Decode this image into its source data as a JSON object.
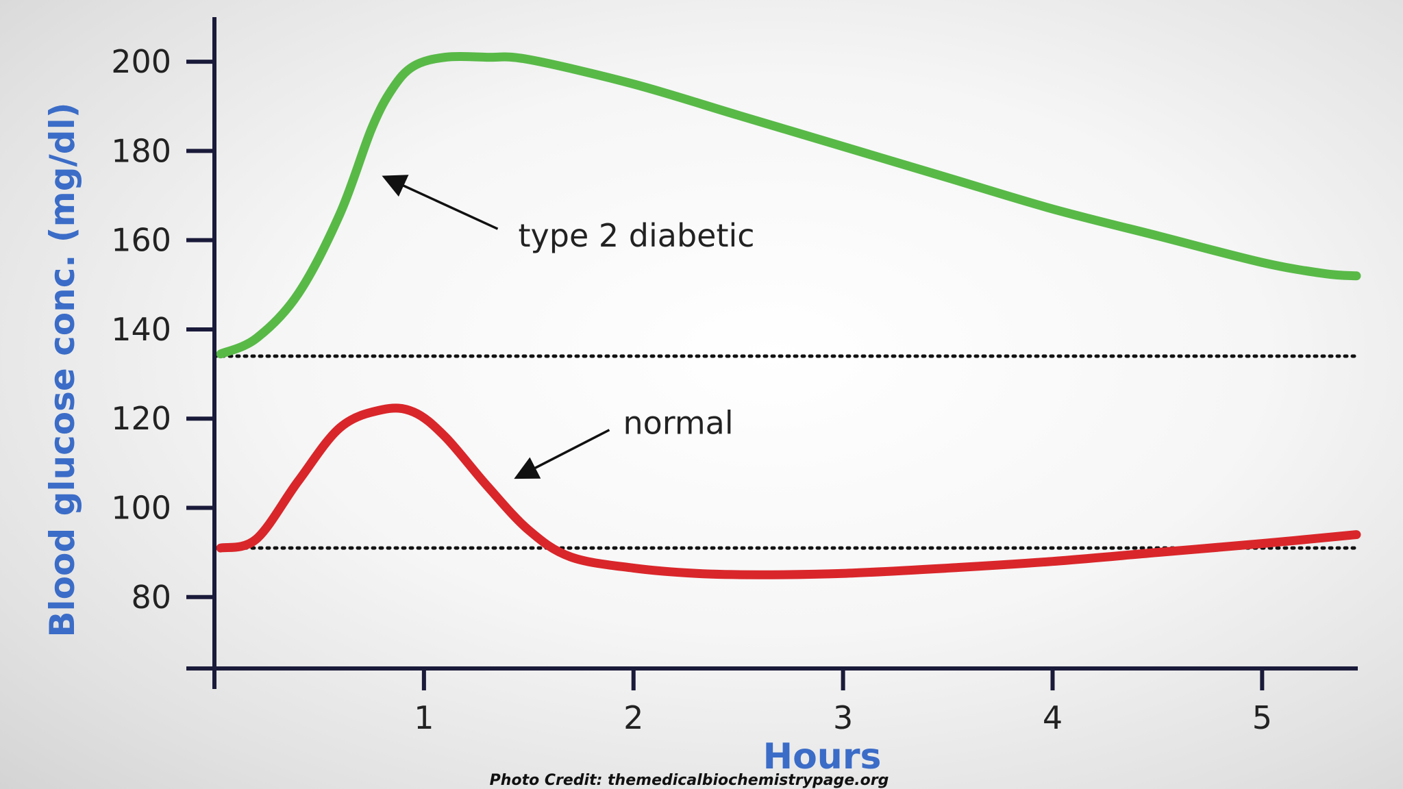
{
  "chart_data": {
    "type": "line",
    "xlabel": "Hours",
    "ylabel": "Blood glucose conc. (mg/dl)",
    "xlim": [
      0,
      5.45
    ],
    "ylim": [
      64,
      210
    ],
    "x_ticks": [
      1,
      2,
      3,
      4,
      5
    ],
    "y_ticks": [
      80,
      100,
      120,
      140,
      160,
      180,
      200
    ],
    "reference_lines": [
      {
        "y": 134,
        "style": "dotted"
      },
      {
        "y": 91,
        "style": "dotted"
      }
    ],
    "series": [
      {
        "name": "type 2 diabetic",
        "color": "#58b947",
        "x": [
          0.03,
          0.2,
          0.4,
          0.6,
          0.75,
          0.85,
          0.95,
          1.1,
          1.3,
          1.5,
          2.0,
          2.5,
          3.0,
          3.5,
          4.0,
          4.5,
          5.0,
          5.3,
          5.45
        ],
        "y": [
          134.5,
          138,
          148,
          166,
          185,
          194,
          199,
          201,
          201,
          200.5,
          195,
          188,
          181,
          174,
          167,
          161,
          155,
          152.5,
          152
        ]
      },
      {
        "name": "normal",
        "color": "#d9262a",
        "x": [
          0.03,
          0.2,
          0.4,
          0.6,
          0.8,
          0.95,
          1.1,
          1.3,
          1.5,
          1.7,
          2.0,
          2.3,
          2.6,
          3.0,
          3.5,
          4.0,
          4.5,
          5.0,
          5.45
        ],
        "y": [
          91,
          93,
          106,
          118,
          122,
          121.5,
          116,
          105,
          95,
          89,
          86.5,
          85.3,
          85,
          85.3,
          86.5,
          88,
          90,
          92,
          94
        ]
      }
    ],
    "annotations": [
      {
        "text": "type 2 diabetic",
        "x": 1.45,
        "y": 161,
        "arrow_to": [
          0.82,
          174
        ],
        "series": 0
      },
      {
        "text": "normal",
        "x": 1.95,
        "y": 119,
        "arrow_to": [
          1.45,
          107
        ],
        "series": 1
      }
    ],
    "credit": "Photo Credit: themedicalbiochemistrypage.org",
    "colors": {
      "axis": "#1a1a3a",
      "axis_title": "#3b6cc7"
    }
  }
}
